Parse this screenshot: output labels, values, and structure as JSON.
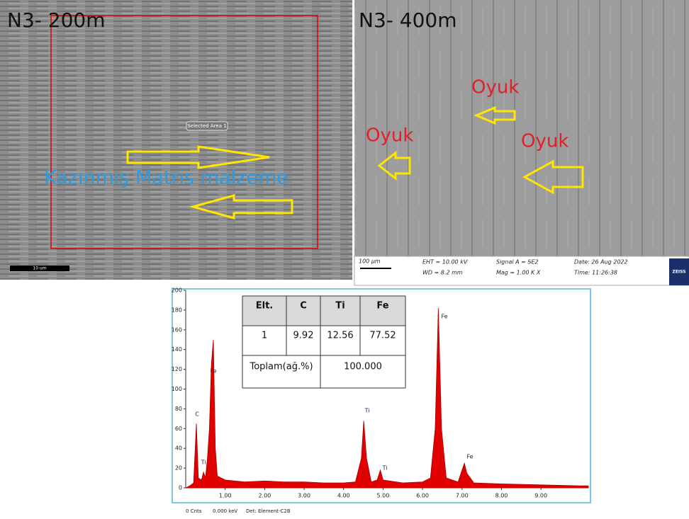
{
  "sem_left": {
    "label": "N3- 200m",
    "annotation": "Kazınmış Matris malzeme",
    "area_label": "Selected Area 1",
    "scale_bar": "10 um"
  },
  "sem_right": {
    "label": "N3- 400m",
    "annotations": [
      "Oyuk",
      "Oyuk",
      "Oyuk"
    ],
    "info": [
      "100 µm",
      "EHT = 10.00 kV",
      "WD = 8.2 mm",
      "Signal A = SE2",
      "Mag = 1.00 K X",
      "Date: 26 Aug 2022",
      "Time: 11:26:38",
      "ZEISS"
    ]
  },
  "table": {
    "header": [
      "Elt.",
      "C",
      "Ti",
      "Fe"
    ],
    "row": [
      1,
      9.92,
      12.56,
      77.52
    ],
    "total": [
      "Toplam(ağ.%)",
      "100.000"
    ]
  },
  "chart_data": {
    "type": "area",
    "color": "#e00000",
    "x": [
      0.0,
      0.1,
      0.2,
      0.27,
      0.32,
      0.4,
      0.45,
      0.5,
      0.55,
      0.6,
      0.65,
      0.7,
      0.75,
      0.8,
      1.0,
      1.5,
      2.0,
      2.5,
      3.0,
      3.5,
      4.0,
      4.3,
      4.45,
      4.51,
      4.58,
      4.7,
      4.85,
      4.93,
      5.0,
      5.5,
      6.0,
      6.2,
      6.32,
      6.4,
      6.48,
      6.6,
      6.9,
      7.0,
      7.06,
      7.12,
      7.3,
      8.0,
      9.0,
      10.0,
      10.2
    ],
    "values": [
      0,
      2,
      5,
      65,
      10,
      8,
      16,
      10,
      30,
      60,
      125,
      150,
      40,
      12,
      8,
      6,
      7,
      6,
      6,
      5,
      5,
      6,
      30,
      68,
      30,
      6,
      8,
      18,
      8,
      5,
      6,
      10,
      60,
      182,
      60,
      10,
      6,
      18,
      25,
      15,
      5,
      4,
      3,
      2,
      2
    ],
    "peak_labels": [
      "C",
      "Ti",
      "Fe",
      "Ti",
      "Ti",
      "Fe",
      "Fe"
    ],
    "xlim": [
      0,
      10.2
    ],
    "ylim": [
      0,
      200
    ],
    "xticks": [
      {
        "value": 1,
        "label": "1.00"
      },
      {
        "value": 2,
        "label": "2.00"
      },
      {
        "value": 3,
        "label": "3.00"
      },
      {
        "value": 4,
        "label": "4.00"
      },
      {
        "value": 5,
        "label": "5.00"
      },
      {
        "value": 6,
        "label": "6.00"
      },
      {
        "value": 7,
        "label": "7.00"
      },
      {
        "value": 8,
        "label": "8.00"
      },
      {
        "value": 9,
        "label": "9.00"
      }
    ],
    "yticks": [
      0,
      20,
      40,
      60,
      80,
      100,
      120,
      140,
      160,
      180,
      200
    ],
    "footer": [
      "0 Cnts",
      "0.000 keV",
      "Det: Element-C2B"
    ]
  }
}
